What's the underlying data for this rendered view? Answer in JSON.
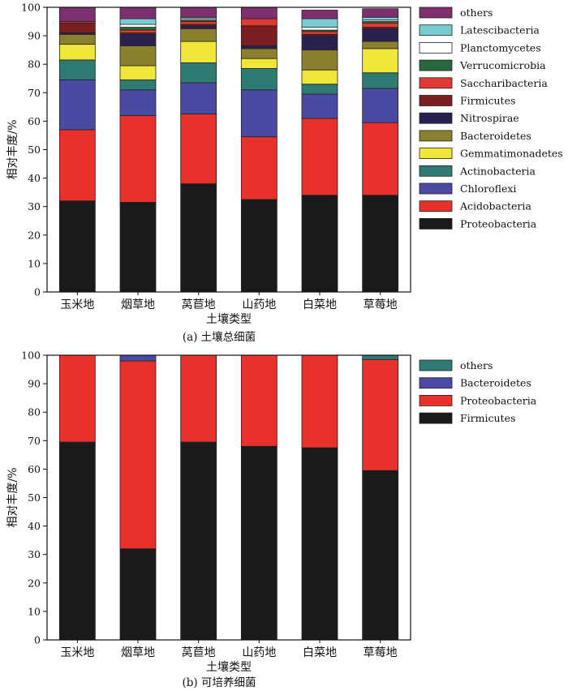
{
  "figure": {
    "caption_a": "(a)  土壤总细菌",
    "caption_b": "(b)  可培养细菌"
  },
  "chart_data": [
    {
      "type": "bar",
      "stacked": true,
      "ylabel": "相对丰度/%",
      "xlabel": "土壤类型",
      "ylim": [
        0,
        100
      ],
      "yticks": [
        0,
        10,
        20,
        30,
        40,
        50,
        60,
        70,
        80,
        90,
        100
      ],
      "categories": [
        "玉米地",
        "烟草地",
        "莴苣地",
        "山药地",
        "白菜地",
        "草莓地"
      ],
      "legend_position": "right",
      "series": [
        {
          "name": "Proteobacteria",
          "color": "#1a1a1a",
          "values": [
            32,
            31.5,
            38,
            32.5,
            34,
            34
          ]
        },
        {
          "name": "Acidobacteria",
          "color": "#e8312a",
          "values": [
            25,
            30.5,
            24.5,
            22,
            27,
            25.5
          ]
        },
        {
          "name": "Chloroflexi",
          "color": "#4b4aa3",
          "values": [
            17.5,
            9,
            11,
            16.5,
            8.5,
            12
          ]
        },
        {
          "name": "Actinobacteria",
          "color": "#2f7a72",
          "values": [
            7,
            3.5,
            7,
            7.5,
            3.5,
            5.5
          ]
        },
        {
          "name": "Gemmatimonadetes",
          "color": "#f0e63a",
          "values": [
            5.5,
            5,
            7.5,
            3.5,
            5,
            8.5
          ]
        },
        {
          "name": "Bacteroidetes",
          "color": "#8a8130",
          "values": [
            3.5,
            7,
            4.5,
            3.5,
            7,
            2.5
          ]
        },
        {
          "name": "Nitrospirae",
          "color": "#2b2150",
          "values": [
            0.5,
            4,
            1,
            1,
            5,
            4.5
          ]
        },
        {
          "name": "Firmicutes",
          "color": "#7a1f1f",
          "values": [
            3.5,
            0.5,
            0.5,
            7,
            0.5,
            0.5
          ]
        },
        {
          "name": "Saccharibacteria",
          "color": "#e03a35",
          "values": [
            0.5,
            1,
            1,
            2.5,
            1,
            1.5
          ]
        },
        {
          "name": "Verrucomicrobia",
          "color": "#27683a",
          "values": [
            0,
            1,
            0.5,
            0,
            0.5,
            0.5
          ]
        },
        {
          "name": "Planctomycetes",
          "color": "#ffffff",
          "values": [
            0,
            1,
            0.5,
            0,
            1,
            0.5
          ]
        },
        {
          "name": "Latescibacteria",
          "color": "#79cdd2",
          "values": [
            0,
            2,
            0.5,
            0,
            3,
            1
          ]
        },
        {
          "name": "others",
          "color": "#7d2f6e",
          "values": [
            5,
            4,
            3.5,
            4,
            3,
            3
          ]
        }
      ]
    },
    {
      "type": "bar",
      "stacked": true,
      "ylabel": "相对丰度/%",
      "xlabel": "土壤类型",
      "ylim": [
        0,
        100
      ],
      "yticks": [
        0,
        10,
        20,
        30,
        40,
        50,
        60,
        70,
        80,
        90,
        100
      ],
      "categories": [
        "玉米地",
        "烟草地",
        "莴苣地",
        "山药地",
        "白菜地",
        "草莓地"
      ],
      "legend_position": "right",
      "series": [
        {
          "name": "Firmicutes",
          "color": "#1a1a1a",
          "values": [
            69.5,
            32,
            69.5,
            68,
            67.5,
            59.5
          ]
        },
        {
          "name": "Proteobacteria",
          "color": "#e8312a",
          "values": [
            30.5,
            66,
            30.5,
            32,
            32.5,
            39
          ]
        },
        {
          "name": "Bacteroidetes",
          "color": "#4b4aa3",
          "values": [
            0,
            2,
            0,
            0,
            0,
            0
          ]
        },
        {
          "name": "others",
          "color": "#2f7a72",
          "values": [
            0,
            0,
            0,
            0,
            0,
            1.5
          ]
        }
      ]
    }
  ]
}
